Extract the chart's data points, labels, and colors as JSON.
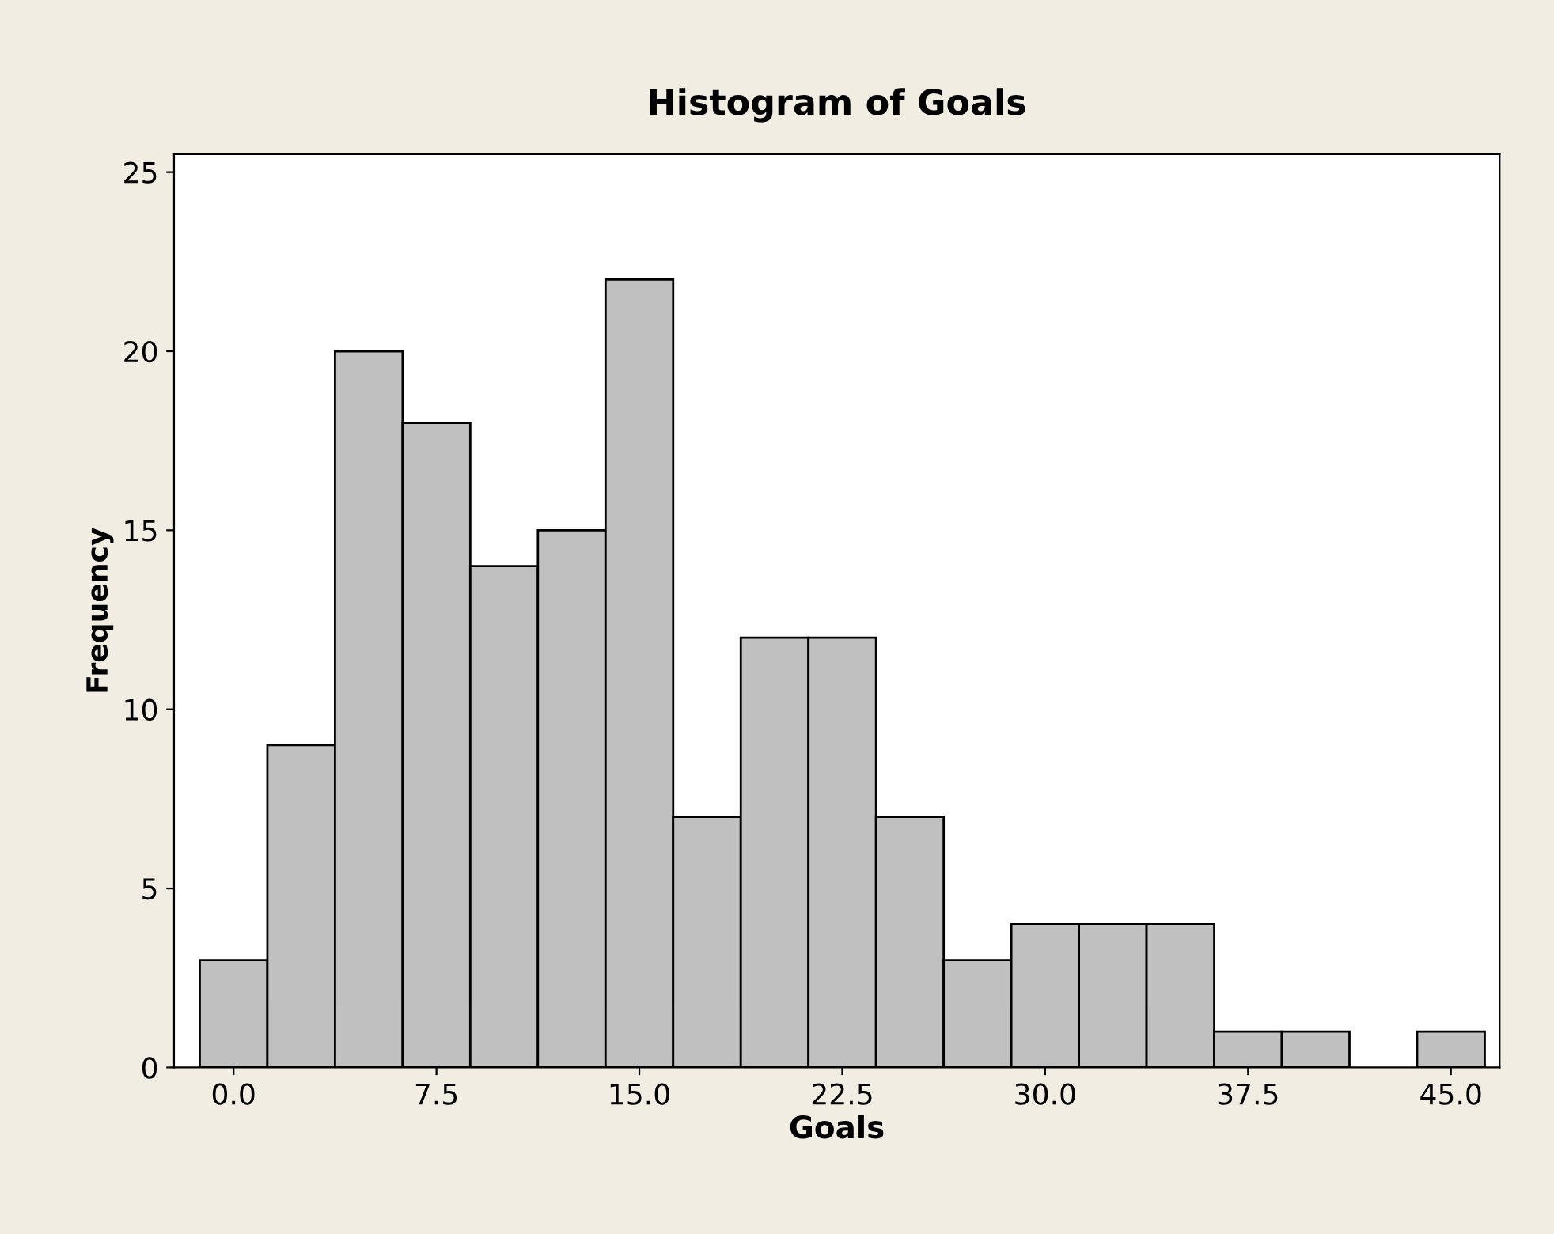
{
  "chart_data": {
    "type": "histogram",
    "title": "Histogram of Goals",
    "xlabel": "Goals",
    "ylabel": "Frequency",
    "bins": [
      -1.25,
      1.25,
      3.75,
      6.25,
      8.75,
      11.25,
      13.75,
      16.25,
      18.75,
      21.25,
      23.75,
      26.25,
      28.75,
      31.25,
      33.75,
      36.25,
      38.75,
      41.25,
      43.75,
      46.25
    ],
    "values": [
      3,
      9,
      20,
      18,
      14,
      15,
      22,
      7,
      12,
      12,
      7,
      3,
      4,
      4,
      4,
      1,
      1,
      0,
      1
    ],
    "color": "#c0c0c0",
    "xlim": [
      -2.2,
      46.8
    ],
    "xticks": [
      {
        "value": 0,
        "label": "0.0"
      },
      7.5,
      {
        "value": 15,
        "label": "15.0"
      },
      22.5,
      {
        "value": 30,
        "label": "30.0"
      },
      37.5,
      {
        "value": 45,
        "label": "45.0"
      }
    ],
    "ylim": [
      0,
      25.5
    ],
    "yticks": [
      0,
      5,
      10,
      15,
      20,
      25
    ],
    "grid": false
  }
}
